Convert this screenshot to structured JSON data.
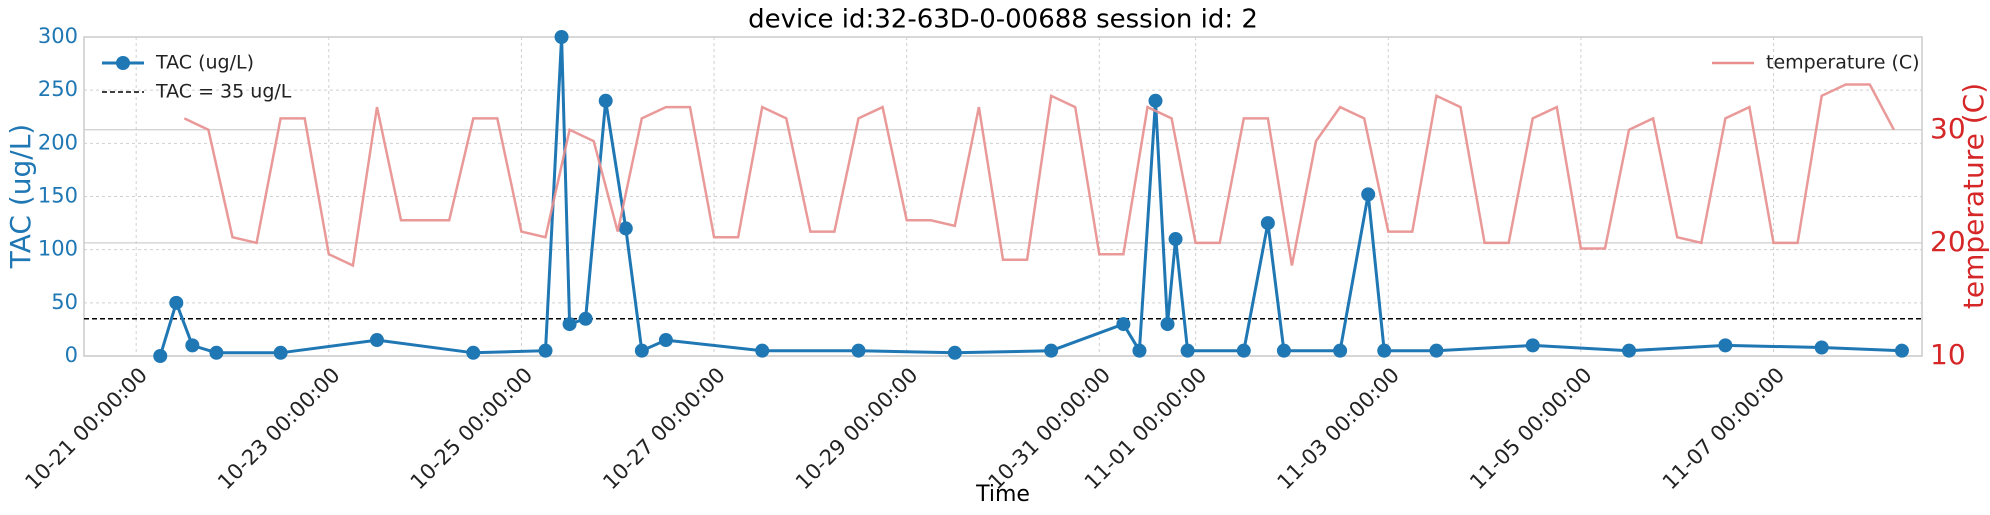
{
  "chart_data": {
    "type": "line",
    "title": "device id:32-63D-0-00688 session id: 2",
    "xlabel": "Time",
    "ylabel": "TAC (ug/L)",
    "y2label": "temperature (C)",
    "xlim": [
      "10-20 11:00:00",
      "11-08 13:00:00"
    ],
    "xticks": [
      "10-21 00:00:00",
      "10-23 00:00:00",
      "10-25 00:00:00",
      "10-27 00:00:00",
      "10-29 00:00:00",
      "10-31 00:00:00",
      "11-01 00:00:00",
      "11-03 00:00:00",
      "11-05 00:00:00",
      "11-07 00:00:00"
    ],
    "ylim": [
      0,
      300
    ],
    "yticks": [
      0,
      50,
      100,
      150,
      200,
      250,
      300
    ],
    "y2lim": [
      10,
      38.2
    ],
    "y2ticks": [
      10,
      20,
      30
    ],
    "grid": true,
    "threshold": {
      "name": "TAC = 35 ug/L",
      "value": 35,
      "color": "#000000"
    },
    "series": [
      {
        "name": "TAC (ug/L)",
        "color": "#1f77b4",
        "axis": "y",
        "legend": "upper left",
        "x": [
          "10-21 06:00:00",
          "10-21 10:00:00",
          "10-21 14:00:00",
          "10-21 20:00:00",
          "10-22 12:00:00",
          "10-23 12:00:00",
          "10-24 12:00:00",
          "10-25 06:00:00",
          "10-25 10:00:00",
          "10-25 12:00:00",
          "10-25 16:00:00",
          "10-25 21:00:00",
          "10-26 02:00:00",
          "10-26 06:00:00",
          "10-26 12:00:00",
          "10-27 12:00:00",
          "10-28 12:00:00",
          "10-29 12:00:00",
          "10-30 12:00:00",
          "10-31 06:00:00",
          "10-31 10:00:00",
          "10-31 14:00:00",
          "10-31 17:00:00",
          "10-31 19:00:00",
          "10-31 22:00:00",
          "11-01 12:00:00",
          "11-01 18:00:00",
          "11-01 22:00:00",
          "11-02 12:00:00",
          "11-02 19:00:00",
          "11-02 23:00:00",
          "11-03 12:00:00",
          "11-04 12:00:00",
          "11-05 12:00:00",
          "11-06 12:00:00",
          "11-07 12:00:00",
          "11-08 08:00:00"
        ],
        "values": [
          0,
          50,
          10,
          3,
          3,
          15,
          3,
          5,
          300,
          30,
          35,
          240,
          120,
          5,
          15,
          5,
          5,
          3,
          5,
          30,
          5,
          240,
          30,
          110,
          5,
          5,
          125,
          5,
          5,
          152,
          5,
          5,
          10,
          5,
          10,
          8,
          5
        ]
      },
      {
        "name": "temperature (C)",
        "color": "#e88e8e",
        "axis": "y2",
        "legend": "upper right",
        "x": [
          "10-21 12:00:00",
          "10-21 18:00:00",
          "10-22 00:00:00",
          "10-22 06:00:00",
          "10-22 12:00:00",
          "10-22 18:00:00",
          "10-23 00:00:00",
          "10-23 06:00:00",
          "10-23 12:00:00",
          "10-23 18:00:00",
          "10-24 00:00:00",
          "10-24 06:00:00",
          "10-24 12:00:00",
          "10-24 18:00:00",
          "10-25 00:00:00",
          "10-25 06:00:00",
          "10-25 12:00:00",
          "10-25 18:00:00",
          "10-26 00:00:00",
          "10-26 06:00:00",
          "10-26 12:00:00",
          "10-26 18:00:00",
          "10-27 00:00:00",
          "10-27 06:00:00",
          "10-27 12:00:00",
          "10-27 18:00:00",
          "10-28 00:00:00",
          "10-28 06:00:00",
          "10-28 12:00:00",
          "10-28 18:00:00",
          "10-29 00:00:00",
          "10-29 06:00:00",
          "10-29 12:00:00",
          "10-29 18:00:00",
          "10-30 00:00:00",
          "10-30 06:00:00",
          "10-30 12:00:00",
          "10-30 18:00:00",
          "10-31 00:00:00",
          "10-31 06:00:00",
          "10-31 12:00:00",
          "10-31 18:00:00",
          "11-01 00:00:00",
          "11-01 06:00:00",
          "11-01 12:00:00",
          "11-01 18:00:00",
          "11-02 00:00:00",
          "11-02 06:00:00",
          "11-02 12:00:00",
          "11-02 18:00:00",
          "11-03 00:00:00",
          "11-03 06:00:00",
          "11-03 12:00:00",
          "11-03 18:00:00",
          "11-04 00:00:00",
          "11-04 06:00:00",
          "11-04 12:00:00",
          "11-04 18:00:00",
          "11-05 00:00:00",
          "11-05 06:00:00",
          "11-05 12:00:00",
          "11-05 18:00:00",
          "11-06 00:00:00",
          "11-06 06:00:00",
          "11-06 12:00:00",
          "11-06 18:00:00",
          "11-07 00:00:00",
          "11-07 06:00:00",
          "11-07 12:00:00",
          "11-07 18:00:00",
          "11-08 00:00:00",
          "11-08 06:00:00"
        ],
        "values": [
          31,
          30,
          20.5,
          20,
          31,
          31,
          19,
          18,
          32,
          22,
          22,
          22,
          31,
          31,
          21,
          20.5,
          30,
          29,
          21,
          31,
          32,
          32,
          20.5,
          20.5,
          32,
          31,
          21,
          21,
          31,
          32,
          22,
          22,
          21.5,
          32,
          18.5,
          18.5,
          33,
          32,
          19,
          19,
          32,
          31,
          20,
          20,
          31,
          31,
          18,
          29,
          32,
          31,
          21,
          21,
          33,
          32,
          20,
          20,
          31,
          32,
          19.5,
          19.5,
          30,
          31,
          20.5,
          20,
          31,
          32,
          20,
          20,
          33,
          34,
          34,
          30
        ]
      }
    ]
  }
}
